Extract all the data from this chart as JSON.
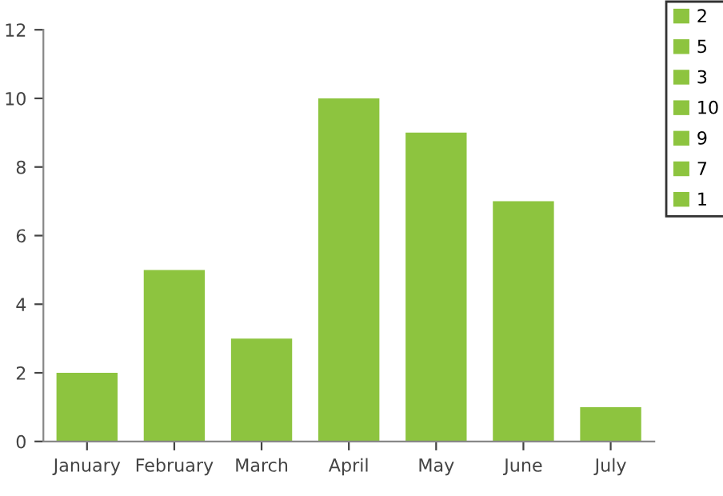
{
  "chart_data": {
    "type": "bar",
    "categories": [
      "January",
      "February",
      "March",
      "April",
      "May",
      "June",
      "July"
    ],
    "series": [
      {
        "name": "2",
        "color": "#8dc43f",
        "values": [
          2,
          null,
          null,
          null,
          null,
          null,
          null
        ]
      },
      {
        "name": "5",
        "color": "#8dc43f",
        "values": [
          null,
          5,
          null,
          null,
          null,
          null,
          null
        ]
      },
      {
        "name": "3",
        "color": "#8dc43f",
        "values": [
          null,
          null,
          3,
          null,
          null,
          null,
          null
        ]
      },
      {
        "name": "10",
        "color": "#8dc43f",
        "values": [
          null,
          null,
          null,
          10,
          null,
          null,
          null
        ]
      },
      {
        "name": "9",
        "color": "#8dc43f",
        "values": [
          null,
          null,
          null,
          null,
          9,
          null,
          null
        ]
      },
      {
        "name": "7",
        "color": "#8dc43f",
        "values": [
          null,
          null,
          null,
          null,
          null,
          7,
          null
        ]
      },
      {
        "name": "1",
        "color": "#8dc43f",
        "values": [
          null,
          null,
          null,
          null,
          null,
          null,
          1
        ]
      }
    ],
    "ylim": [
      0,
      12
    ],
    "yticks": [
      0,
      2,
      4,
      6,
      8,
      10,
      12
    ],
    "grid": false,
    "legend": "top right"
  }
}
